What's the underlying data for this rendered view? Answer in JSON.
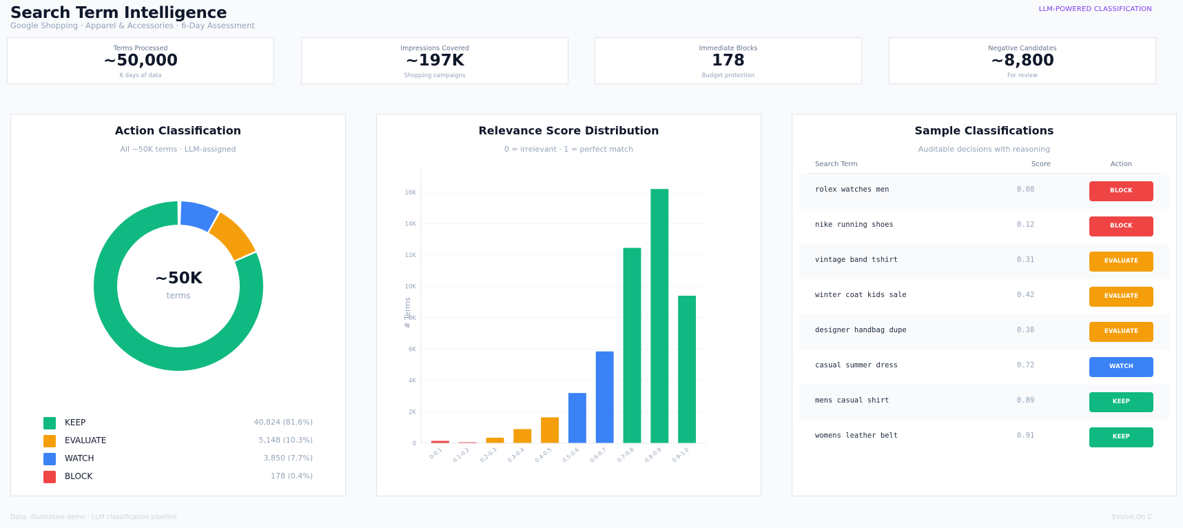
{
  "header": {
    "title": "Search Term Intelligence",
    "subtitle": "Google Shopping · Apparel & Accessories · 6-Day Assessment",
    "badge": "LLM-POWERED CLASSIFICATION"
  },
  "kpis": [
    {
      "label": "Terms Processed",
      "value": "~50,000",
      "sub": "6 days of data"
    },
    {
      "label": "Impressions Covered",
      "value": "~197K",
      "sub": "Shopping campaigns"
    },
    {
      "label": "Immediate Blocks",
      "value": "178",
      "sub": "Budget protection"
    },
    {
      "label": "Negative Candidates",
      "value": "~8,800",
      "sub": "For review"
    }
  ],
  "donut": {
    "title": "Action Classification",
    "subtitle": "All ~50K terms · LLM-assigned",
    "center_value": "~50K",
    "center_label": "terms",
    "segments": [
      {
        "name": "KEEP",
        "value": 40824,
        "display": "40,824  (81.6%)",
        "color": "#10b981"
      },
      {
        "name": "EVALUATE",
        "value": 5148,
        "display": "5,148  (10.3%)",
        "color": "#f59e0b"
      },
      {
        "name": "WATCH",
        "value": 3850,
        "display": "3,850  (7.7%)",
        "color": "#3b82f6"
      },
      {
        "name": "BLOCK",
        "value": 178,
        "display": "178  (0.4%)",
        "color": "#ef4444"
      }
    ]
  },
  "chart_data": {
    "type": "bar",
    "title": "Relevance Score Distribution",
    "subtitle": "0 = irrelevant · 1 = perfect match",
    "ylabel": "# Terms",
    "xlabel": "",
    "categories": [
      "0-0.1",
      "0.1-0.2",
      "0.2-0.3",
      "0.3-0.4",
      "0.4-0.5",
      "0.5-0.6",
      "0.6-0.7",
      "0.7-0.8",
      "0.8-0.9",
      "0.9-1.0"
    ],
    "values": [
      150,
      60,
      350,
      900,
      1650,
      3200,
      5850,
      12450,
      16200,
      9400
    ],
    "colors": [
      "#ef4444",
      "#ef4444",
      "#f59e0b",
      "#f59e0b",
      "#f59e0b",
      "#3b82f6",
      "#3b82f6",
      "#10b981",
      "#10b981",
      "#10b981"
    ],
    "ylim": [
      0,
      17000
    ],
    "yticks": [
      0,
      2000,
      4000,
      6000,
      8000,
      10000,
      12000,
      14000,
      16000
    ],
    "ytick_labels": [
      "0",
      "2K",
      "4K",
      "6K",
      "8K",
      "10K",
      "12K",
      "14K",
      "16K"
    ],
    "grid": true
  },
  "samples": {
    "title": "Sample Classifications",
    "subtitle": "Auditable decisions with reasoning",
    "columns": {
      "term": "Search Term",
      "score": "Score",
      "action": "Action"
    },
    "action_colors": {
      "BLOCK": "#ef4444",
      "EVALUATE": "#f59e0b",
      "WATCH": "#3b82f6",
      "KEEP": "#10b981"
    },
    "rows": [
      {
        "term": "rolex watches men",
        "score": "0.08",
        "action": "BLOCK"
      },
      {
        "term": "nike running shoes",
        "score": "0.12",
        "action": "BLOCK"
      },
      {
        "term": "vintage band tshirt",
        "score": "0.31",
        "action": "EVALUATE"
      },
      {
        "term": "winter coat kids sale",
        "score": "0.42",
        "action": "EVALUATE"
      },
      {
        "term": "designer handbag dupe",
        "score": "0.38",
        "action": "EVALUATE"
      },
      {
        "term": "casual summer dress",
        "score": "0.72",
        "action": "WATCH"
      },
      {
        "term": "mens casual shirt",
        "score": "0.89",
        "action": "KEEP"
      },
      {
        "term": "womens leather belt",
        "score": "0.91",
        "action": "KEEP"
      }
    ]
  },
  "footer": {
    "left": "Data: illustrative demo · LLM classification pipeline",
    "right": "Evolve.On C"
  }
}
